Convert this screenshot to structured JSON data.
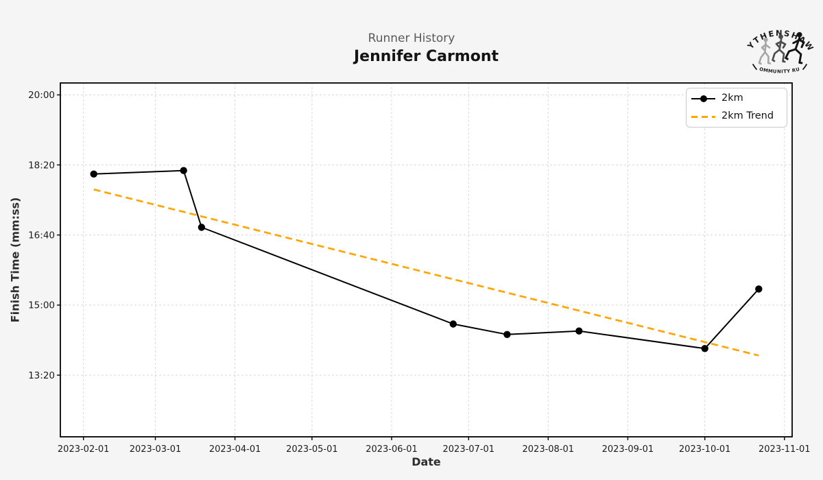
{
  "header": {
    "supertitle": "Runner History",
    "title": "Jennifer Carmont"
  },
  "logo": {
    "arc_text_top": "WYTHENSHAWE",
    "arc_text_bottom": "COMMUNITY RUN",
    "runner_colors": [
      "#a6a6a6",
      "#4d4d4d",
      "#141414"
    ],
    "text_color": "#1a1a1a"
  },
  "chart_data": {
    "type": "line",
    "title": "Jennifer Carmont",
    "supertitle": "Runner History",
    "xlabel": "Date",
    "ylabel": "Finish Time (mm:ss)",
    "grid": true,
    "legend_position": "upper right",
    "x_tick_labels": [
      "2023-02-01",
      "2023-03-01",
      "2023-04-01",
      "2023-05-01",
      "2023-06-01",
      "2023-07-01",
      "2023-08-01",
      "2023-09-01",
      "2023-10-01",
      "2023-11-01"
    ],
    "y_tick_labels": [
      "20:00",
      "18:20",
      "16:40",
      "15:00",
      "13:20"
    ],
    "x_range": [
      "2023-01-23",
      "2023-11-04"
    ],
    "y_range_mmss": [
      "11:52",
      "20:17"
    ],
    "series": [
      {
        "name": "2km",
        "color": "#000000",
        "linestyle": "solid",
        "marker": "circle",
        "points": [
          {
            "date": "2023-02-05",
            "time": "18:07"
          },
          {
            "date": "2023-03-12",
            "time": "18:12"
          },
          {
            "date": "2023-03-19",
            "time": "16:51"
          },
          {
            "date": "2023-06-25",
            "time": "14:33"
          },
          {
            "date": "2023-07-16",
            "time": "14:18"
          },
          {
            "date": "2023-08-13",
            "time": "14:23"
          },
          {
            "date": "2023-10-01",
            "time": "13:58"
          },
          {
            "date": "2023-10-22",
            "time": "15:23"
          }
        ]
      },
      {
        "name": "2km Trend",
        "color": "#FFA500",
        "linestyle": "dashed",
        "marker": "none",
        "points": [
          {
            "date": "2023-02-05",
            "time": "17:45"
          },
          {
            "date": "2023-10-22",
            "time": "13:48"
          }
        ]
      }
    ],
    "colors": {
      "figure_bg": "#f5f5f5",
      "plot_bg": "#ffffff",
      "grid": "#d8d8d8",
      "spine": "#000000",
      "tick_label": "#1c1c1c"
    }
  }
}
